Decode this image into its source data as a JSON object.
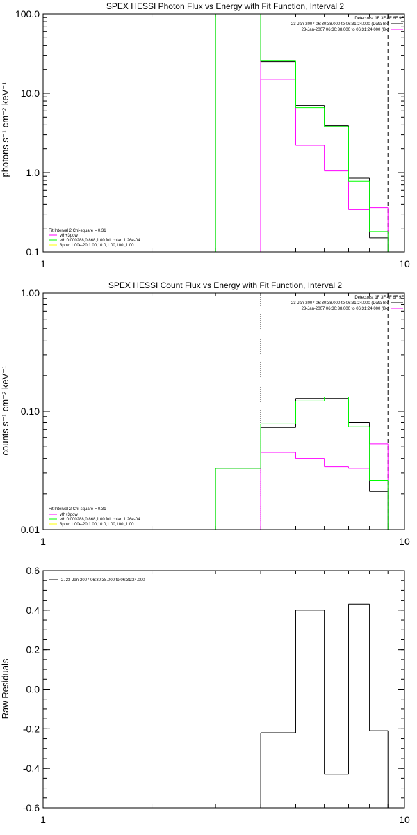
{
  "colors": {
    "data": "#000000",
    "background": "#ff00ff",
    "total": "#00ff00",
    "component": "#ffff00",
    "axes": "#000000",
    "page_background": "#ffffff"
  },
  "chart_data": [
    {
      "type": "line",
      "id": "photon",
      "title": "SPEX HESSI Photon Flux vs Energy with Fit Function, Interval 2",
      "ylabel": "photons s⁻¹ cm⁻² keV⁻¹",
      "xscale": "log",
      "yscale": "log",
      "xlim": [
        1,
        10
      ],
      "ylim": [
        0.1,
        100
      ],
      "xtick_values": [
        1,
        10
      ],
      "xtick_labels": [
        "1",
        "10"
      ],
      "ytick_values": [
        0.1,
        1,
        10,
        100
      ],
      "ytick_labels": [
        "0.1",
        "1.0",
        "10.0",
        "100.0"
      ],
      "edges": [
        3.0,
        4.0,
        5.0,
        6.0,
        7.0,
        8.0,
        9.0
      ],
      "series": [
        {
          "color": "#000000",
          "values": [
            100,
            25,
            7.0,
            3.9,
            0.85,
            0.15
          ]
        },
        {
          "color": "#ff00ff",
          "values": [
            null,
            15,
            2.2,
            1.05,
            0.34,
            0.36
          ]
        },
        {
          "color": "#00ff00",
          "values": [
            100,
            26,
            6.6,
            3.8,
            0.78,
            0.18
          ]
        }
      ],
      "vlines": [
        {
          "x": 4.0,
          "color": "#ff00ff",
          "style": "solid"
        },
        {
          "x": 9.0,
          "color": "#000000",
          "style": "dashed"
        }
      ],
      "legend_header": "Detectors: 1F 3F 4F 6F 9F",
      "legend_entries": [
        {
          "label": "23-Jan-2007 06:30:38.000 to 06:31:24.000 (Data-Bk)",
          "color": "#000000"
        },
        {
          "label": "23-Jan-2007 06:30:38.000 to 06:31:24.000 (Bk)",
          "color": "#ff00ff"
        }
      ],
      "legend_position": "top-right",
      "fit_title": "Fit Interval 2   Chi-square = 0.31",
      "fit_entries": [
        {
          "label": "vth+3pow",
          "color": "#ff00ff"
        },
        {
          "label": "vth 0.000288,0.868,1.00  full chian 1.26e-04",
          "color": "#00ff00"
        },
        {
          "label": "3pow 1.00e-20,1.00,10.0,1.00,100.,1.00",
          "color": "#ffff00"
        }
      ],
      "fit_position": "bottom-left"
    },
    {
      "type": "line",
      "id": "count",
      "title": "SPEX HESSI Count Flux vs Energy with Fit Function, Interval 2",
      "ylabel": "counts s⁻¹ cm⁻² keV⁻¹",
      "xscale": "log",
      "yscale": "log",
      "xlim": [
        1,
        10
      ],
      "ylim": [
        0.01,
        1
      ],
      "xtick_values": [
        1,
        10
      ],
      "xtick_labels": [
        "1",
        "10"
      ],
      "ytick_values": [
        0.01,
        0.1,
        1
      ],
      "ytick_labels": [
        "0.01",
        "0.10",
        "1.00"
      ],
      "edges": [
        3.0,
        4.0,
        5.0,
        6.0,
        7.0,
        8.0,
        9.0
      ],
      "series": [
        {
          "color": "#000000",
          "values": [
            0.033,
            0.073,
            0.128,
            0.128,
            0.08,
            0.021
          ]
        },
        {
          "color": "#ff00ff",
          "values": [
            null,
            0.045,
            0.04,
            0.034,
            0.033,
            0.053
          ]
        },
        {
          "color": "#00ff00",
          "values": [
            0.033,
            0.078,
            0.122,
            0.132,
            0.074,
            0.026
          ]
        }
      ],
      "vlines": [
        {
          "x": 4.0,
          "color": "#000000",
          "style": "dotted"
        },
        {
          "x": 9.0,
          "color": "#000000",
          "style": "dashed"
        }
      ],
      "legend_header": "Detectors: 1F 3F 4F 6F 9F",
      "legend_entries": [
        {
          "label": "23-Jan-2007 06:30:38.000 to 06:31:24.000 (Data-Bk)",
          "color": "#000000"
        },
        {
          "label": "23-Jan-2007 06:30:38.000 to 06:31:24.000 (Bk)",
          "color": "#ff00ff"
        }
      ],
      "legend_position": "top-right",
      "fit_title": "Fit Interval 2   Chi-square = 0.31",
      "fit_entries": [
        {
          "label": "vth+3pow",
          "color": "#ff00ff"
        },
        {
          "label": "vth 0.000288,0.868,1.00  full chian 1.26e-04",
          "color": "#00ff00"
        },
        {
          "label": "3pow 1.00e-20,1.00,10.0,1.00,100.,1.00",
          "color": "#ffff00"
        }
      ],
      "fit_position": "bottom-left"
    },
    {
      "type": "line",
      "id": "resid",
      "title": "",
      "ylabel": "Raw Residuals",
      "xscale": "log",
      "yscale": "linear",
      "xlim": [
        1,
        10
      ],
      "ylim": [
        -0.6,
        0.6
      ],
      "xtick_values": [
        1,
        10
      ],
      "xtick_labels": [
        "1",
        "10"
      ],
      "ytick_values": [
        -0.6,
        -0.4,
        -0.2,
        0.0,
        0.2,
        0.4,
        0.6
      ],
      "ytick_labels": [
        "-0.6",
        "-0.4",
        "-0.2",
        "0.0",
        "0.2",
        "0.4",
        "0.6"
      ],
      "edges": [
        4.0,
        5.0,
        6.0,
        7.0,
        8.0,
        9.0
      ],
      "series": [
        {
          "color": "#000000",
          "values": [
            -0.22,
            0.4,
            -0.43,
            0.43,
            -0.21
          ]
        }
      ],
      "vlines": [],
      "legend_header": "",
      "legend_entries": [
        {
          "label": "2. 23-Jan-2007 06:30:38.000 to 06:31:24.000",
          "color": "#000000"
        }
      ],
      "legend_position": "top-left",
      "fit_title": "",
      "fit_entries": [],
      "fit_position": ""
    }
  ]
}
